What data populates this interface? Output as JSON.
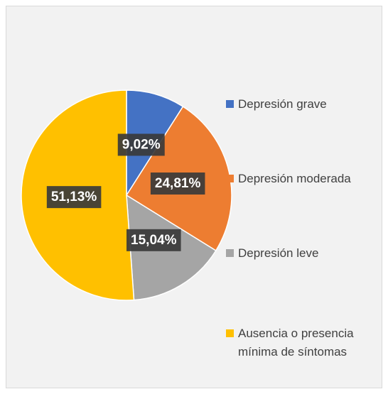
{
  "chart_data": {
    "type": "pie",
    "categories": [
      "Depresión grave",
      "Depresión moderada",
      "Depresión leve",
      "Ausencia o presencia mínima de síntomas"
    ],
    "values": [
      9.02,
      24.81,
      15.04,
      51.13
    ],
    "value_labels": [
      "9,02%",
      "24,81%",
      "15,04%",
      "51,13%"
    ],
    "colors": [
      "#4472c4",
      "#ed7d31",
      "#a5a5a5",
      "#ffc000"
    ],
    "legend": "right"
  }
}
